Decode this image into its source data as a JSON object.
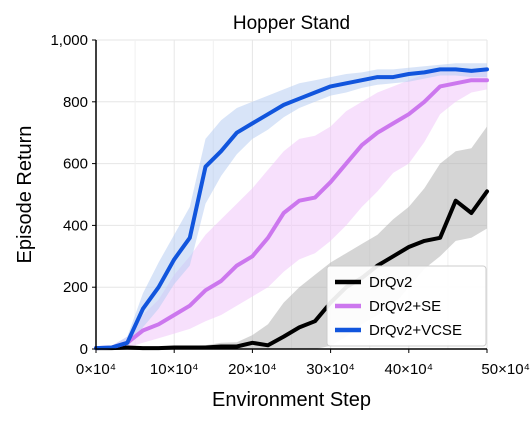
{
  "chart_data": {
    "type": "line",
    "title": "Hopper Stand",
    "xlabel": "Environment Step",
    "ylabel": "Episode Return",
    "xlim": [
      0,
      500000
    ],
    "ylim": [
      0,
      1000
    ],
    "x_ticks": [
      {
        "value": 0,
        "label": "0×10⁴"
      },
      {
        "value": 100000,
        "label": "10×10⁴"
      },
      {
        "value": 200000,
        "label": "20×10⁴"
      },
      {
        "value": 300000,
        "label": "30×10⁴"
      },
      {
        "value": 400000,
        "label": "40×10⁴"
      },
      {
        "value": 500000,
        "label": "50×10⁴"
      }
    ],
    "y_ticks": [
      {
        "value": 0,
        "label": "0"
      },
      {
        "value": 200,
        "label": "200"
      },
      {
        "value": 400,
        "label": "400"
      },
      {
        "value": 600,
        "label": "600"
      },
      {
        "value": 800,
        "label": "800"
      },
      {
        "value": 1000,
        "label": "1,000"
      }
    ],
    "grid": true,
    "legend_position": "bottom-right",
    "series": [
      {
        "name": "DrQv2",
        "color": "#000000",
        "band_color": "#b3b3b3",
        "x": [
          0,
          20000,
          40000,
          60000,
          80000,
          100000,
          120000,
          140000,
          160000,
          180000,
          200000,
          220000,
          240000,
          260000,
          280000,
          300000,
          320000,
          340000,
          360000,
          380000,
          400000,
          420000,
          440000,
          460000,
          480000,
          500000
        ],
        "y": [
          3,
          3,
          5,
          3,
          3,
          5,
          5,
          5,
          8,
          8,
          20,
          12,
          40,
          70,
          90,
          150,
          200,
          230,
          270,
          300,
          330,
          350,
          360,
          480,
          440,
          510
        ],
        "lower": [
          0,
          0,
          0,
          0,
          0,
          0,
          0,
          0,
          0,
          0,
          0,
          0,
          0,
          0,
          0,
          10,
          40,
          80,
          110,
          140,
          200,
          260,
          300,
          350,
          360,
          390
        ],
        "upper": [
          8,
          8,
          10,
          8,
          8,
          10,
          10,
          12,
          20,
          22,
          45,
          80,
          150,
          200,
          240,
          280,
          310,
          340,
          370,
          420,
          460,
          520,
          600,
          640,
          650,
          720
        ]
      },
      {
        "name": "DrQv2+SE",
        "color": "#cc77ee",
        "band_color": "#f0c6fa",
        "x": [
          0,
          20000,
          40000,
          60000,
          80000,
          100000,
          120000,
          140000,
          160000,
          180000,
          200000,
          220000,
          240000,
          260000,
          280000,
          300000,
          320000,
          340000,
          360000,
          380000,
          400000,
          420000,
          440000,
          460000,
          480000,
          500000
        ],
        "y": [
          3,
          5,
          20,
          60,
          80,
          110,
          140,
          190,
          220,
          270,
          300,
          360,
          440,
          480,
          490,
          540,
          600,
          660,
          700,
          730,
          760,
          800,
          850,
          860,
          870,
          870
        ],
        "lower": [
          0,
          0,
          5,
          20,
          35,
          50,
          65,
          90,
          110,
          140,
          170,
          200,
          250,
          290,
          310,
          350,
          400,
          460,
          510,
          570,
          600,
          670,
          760,
          800,
          830,
          840
        ],
        "upper": [
          8,
          10,
          40,
          110,
          160,
          240,
          300,
          370,
          420,
          470,
          520,
          580,
          640,
          680,
          690,
          720,
          770,
          800,
          830,
          850,
          870,
          890,
          900,
          905,
          905,
          900
        ]
      },
      {
        "name": "DrQv2+VCSE",
        "color": "#1155dd",
        "band_color": "#b8cdf2",
        "x": [
          0,
          20000,
          40000,
          60000,
          80000,
          100000,
          120000,
          140000,
          160000,
          180000,
          200000,
          220000,
          240000,
          260000,
          280000,
          300000,
          320000,
          340000,
          360000,
          380000,
          400000,
          420000,
          440000,
          460000,
          480000,
          500000
        ],
        "y": [
          3,
          5,
          20,
          130,
          200,
          290,
          360,
          590,
          640,
          700,
          730,
          760,
          790,
          810,
          830,
          850,
          860,
          870,
          880,
          880,
          890,
          895,
          905,
          905,
          900,
          905
        ],
        "lower": [
          0,
          0,
          5,
          70,
          130,
          210,
          270,
          470,
          560,
          630,
          680,
          710,
          750,
          780,
          800,
          820,
          830,
          845,
          855,
          860,
          865,
          875,
          885,
          885,
          880,
          880
        ],
        "upper": [
          8,
          10,
          40,
          180,
          280,
          370,
          460,
          680,
          740,
          780,
          800,
          820,
          840,
          860,
          870,
          880,
          890,
          895,
          905,
          905,
          910,
          915,
          920,
          925,
          925,
          925
        ]
      }
    ]
  }
}
